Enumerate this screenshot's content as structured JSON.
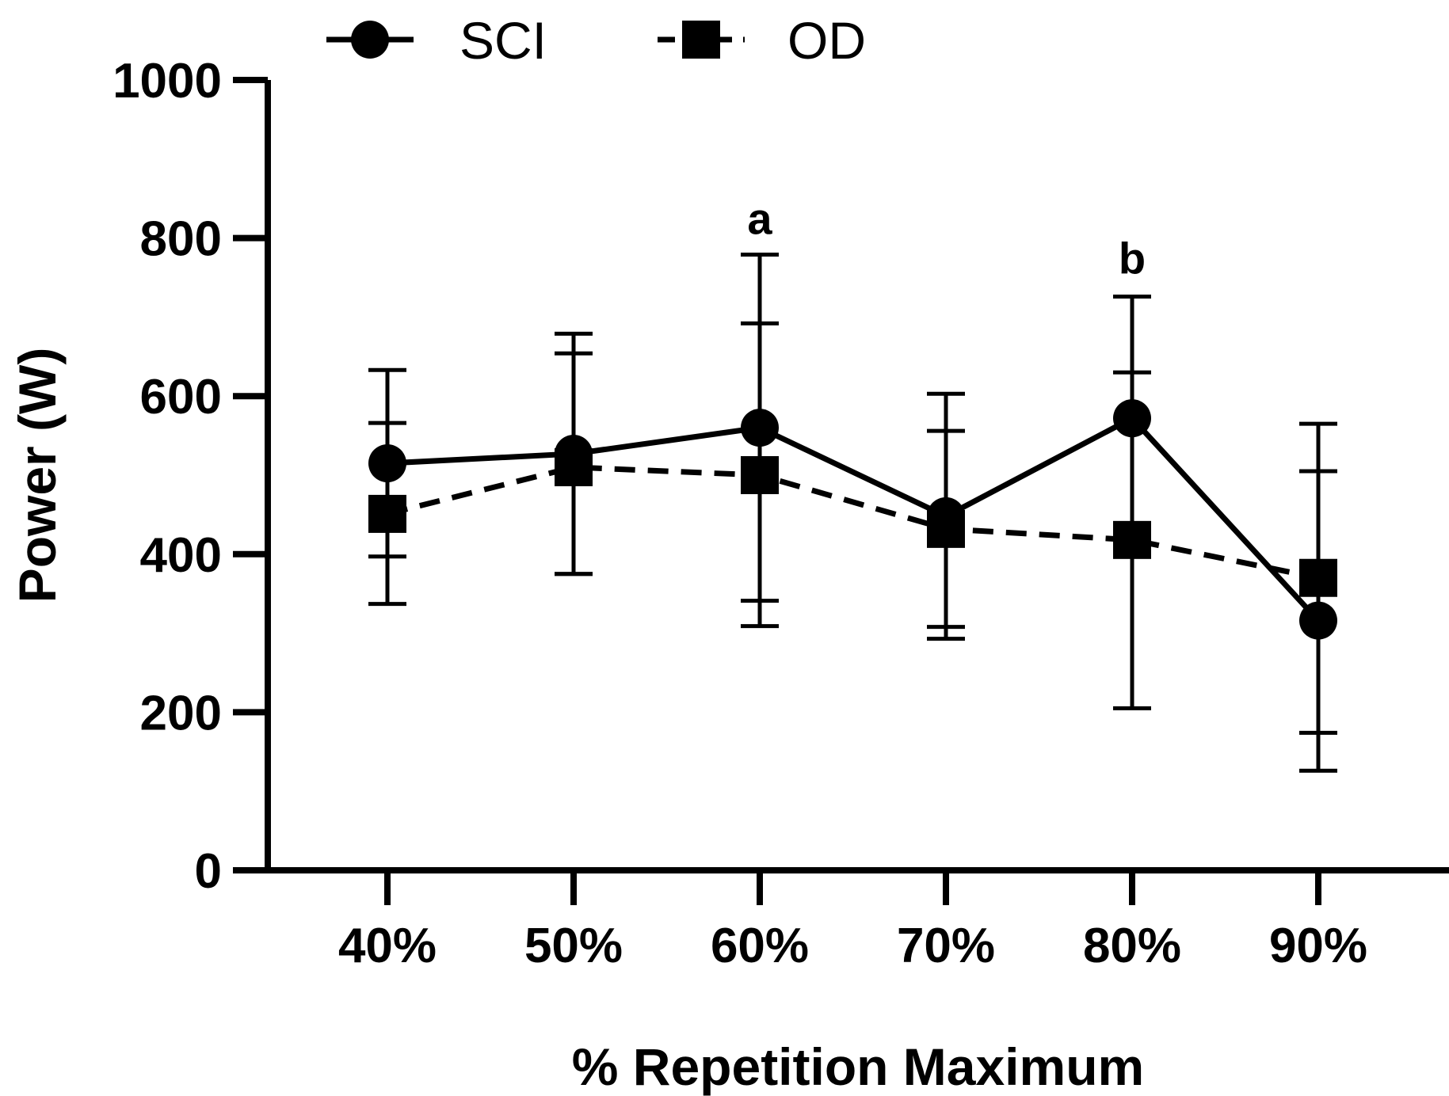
{
  "chart_data": {
    "type": "line",
    "title": "",
    "xlabel": "% Repetition Maximum",
    "ylabel": "Power (W)",
    "categories": [
      "40%",
      "50%",
      "60%",
      "70%",
      "80%",
      "90%"
    ],
    "yticks": [
      "0",
      "200",
      "400",
      "600",
      "800",
      "1000"
    ],
    "ylim": [
      0,
      1000
    ],
    "grid": false,
    "legend_position": "top",
    "series": [
      {
        "name": "SCI",
        "marker": "circle",
        "line_style": "solid",
        "values": [
          515,
          527,
          560,
          448,
          572,
          316
        ],
        "error_upper": [
          633,
          679,
          779,
          603,
          726,
          565
        ],
        "error_lower": [
          397,
          375,
          341,
          293,
          418,
          126
        ]
      },
      {
        "name": "OD",
        "marker": "square",
        "line_style": "dashed",
        "values": [
          451,
          510,
          500,
          432,
          418,
          370
        ],
        "error_upper": [
          566,
          654,
          692,
          556,
          630,
          505
        ],
        "error_lower": [
          337,
          375,
          309,
          308,
          205,
          174
        ]
      }
    ],
    "annotations": [
      {
        "text": "a",
        "category": "60%",
        "y": 805
      },
      {
        "text": "b",
        "category": "80%",
        "y": 755
      }
    ],
    "colors": {
      "axis": "#000000",
      "series": "#000000",
      "background": "#ffffff"
    }
  }
}
